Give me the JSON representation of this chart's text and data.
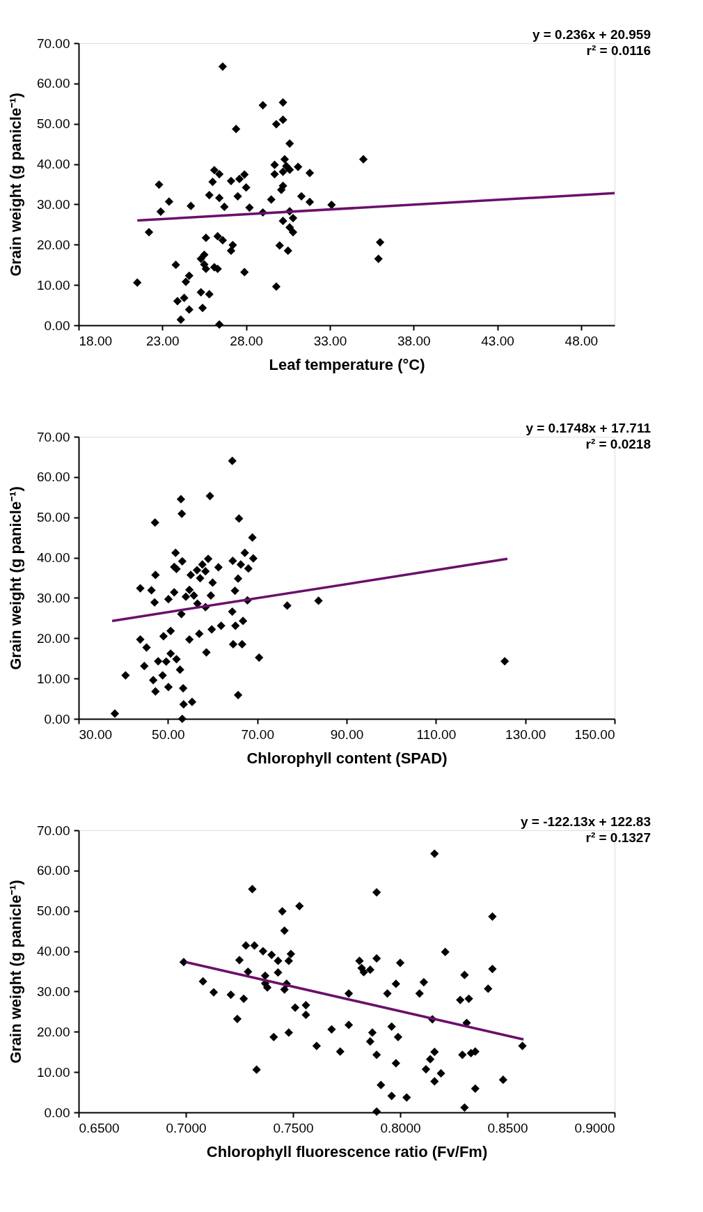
{
  "chart_data": [
    {
      "type": "scatter",
      "xlabel": "Leaf temperature (°C)",
      "ylabel": "Grain weight (g panicle⁻¹)",
      "grid": false,
      "xlim": [
        18,
        50
      ],
      "xticks": [
        {
          "value": 18,
          "label": "18.00"
        },
        {
          "value": 23,
          "label": "23.00"
        },
        {
          "value": 28,
          "label": "28.00"
        },
        {
          "value": 33,
          "label": "33.00"
        },
        {
          "value": 38,
          "label": "38.00"
        },
        {
          "value": 43,
          "label": "43.00"
        },
        {
          "value": 48,
          "label": "48.00"
        }
      ],
      "ylim": [
        0,
        70
      ],
      "yticks": [
        {
          "value": 0,
          "label": "0.00"
        },
        {
          "value": 10,
          "label": "10.00"
        },
        {
          "value": 20,
          "label": "20.00"
        },
        {
          "value": 30,
          "label": "30.00"
        },
        {
          "value": 40,
          "label": "40.00"
        },
        {
          "value": 50,
          "label": "50.00"
        },
        {
          "value": 60,
          "label": "60.00"
        },
        {
          "value": 70,
          "label": "70.00"
        }
      ],
      "annotations": [
        "y = 0.236x + 20.959",
        "r² = 0.0116"
      ],
      "series": [
        {
          "type": "scatter",
          "color": "#000000",
          "marker": "diamond",
          "x": [
            26.6,
            29.0,
            30.2,
            30.2,
            29.8,
            27.4,
            30.6,
            35.0,
            22.8,
            23.4,
            22.9,
            24.7,
            22.2,
            21.5,
            26.1,
            26.4,
            26.0,
            25.8,
            26.4,
            26.7,
            27.1,
            27.6,
            27.9,
            28.0,
            27.5,
            28.2,
            29.0,
            29.5,
            29.7,
            29.7,
            30.3,
            30.4,
            30.2,
            30.6,
            31.1,
            31.8,
            30.2,
            30.1,
            31.3,
            31.8,
            33.1,
            30.6,
            30.8,
            30.2,
            30.6,
            30.8,
            30.0,
            30.5,
            29.8,
            36.0,
            35.9,
            25.6,
            26.3,
            26.6,
            27.2,
            27.1,
            27.9,
            25.5,
            25.3,
            25.5,
            25.6,
            26.1,
            26.3,
            23.8,
            24.6,
            24.4,
            25.3,
            25.8,
            23.9,
            24.3,
            24.6,
            25.4,
            24.1,
            26.4
          ],
          "values": [
            64.2,
            54.6,
            55.3,
            51.0,
            49.9,
            48.7,
            45.1,
            41.2,
            34.9,
            30.7,
            28.2,
            29.6,
            23.1,
            10.6,
            38.5,
            37.5,
            35.6,
            32.3,
            31.6,
            29.4,
            35.8,
            36.3,
            37.4,
            34.2,
            32.0,
            29.2,
            28.0,
            31.2,
            39.8,
            37.5,
            41.2,
            39.5,
            38.1,
            38.6,
            39.3,
            37.8,
            34.6,
            33.6,
            32.0,
            30.6,
            29.9,
            28.3,
            26.6,
            25.9,
            24.3,
            23.1,
            19.8,
            18.5,
            9.6,
            20.6,
            16.5,
            21.7,
            22.1,
            21.1,
            19.9,
            18.5,
            13.2,
            17.5,
            16.5,
            15.1,
            14.0,
            14.4,
            14.0,
            15.0,
            12.3,
            10.8,
            8.2,
            7.7,
            6.0,
            6.8,
            3.9,
            4.3,
            1.4,
            0.2
          ]
        },
        {
          "type": "line",
          "color": "#6b0f6b",
          "line_style": "solid",
          "x": [
            21.5,
            50
          ],
          "values": [
            26.0,
            32.8
          ]
        }
      ]
    },
    {
      "type": "scatter",
      "xlabel": "Chlorophyll content (SPAD)",
      "ylabel": "Grain weight (g panicle⁻¹)",
      "grid": false,
      "xlim": [
        30,
        150
      ],
      "xticks": [
        {
          "value": 30,
          "label": "30.00"
        },
        {
          "value": 50,
          "label": "50.00"
        },
        {
          "value": 70,
          "label": "70.00"
        },
        {
          "value": 90,
          "label": "90.00"
        },
        {
          "value": 110,
          "label": "110.00"
        },
        {
          "value": 130,
          "label": "130.00"
        },
        {
          "value": 150,
          "label": "150.00"
        }
      ],
      "ylim": [
        0,
        70
      ],
      "yticks": [
        {
          "value": 0,
          "label": "0.00"
        },
        {
          "value": 10,
          "label": "10.00"
        },
        {
          "value": 20,
          "label": "20.00"
        },
        {
          "value": 30,
          "label": "30.00"
        },
        {
          "value": 40,
          "label": "40.00"
        },
        {
          "value": 50,
          "label": "50.00"
        },
        {
          "value": 60,
          "label": "60.00"
        },
        {
          "value": 70,
          "label": "70.00"
        }
      ],
      "annotations": [
        "y = 0.1748x + 17.711",
        "r² = 0.0218"
      ],
      "series": [
        {
          "type": "scatter",
          "color": "#000000",
          "marker": "diamond",
          "x": [
            38.1,
            40.5,
            43.8,
            46.3,
            47.0,
            47.2,
            47.1,
            43.8,
            45.2,
            44.7,
            46.7,
            47.2,
            47.8,
            48.8,
            49.0,
            50.6,
            50.1,
            49.6,
            50.6,
            51.9,
            52.7,
            53.4,
            53.5,
            55.4,
            53.2,
            51.4,
            50.1,
            51.7,
            51.4,
            53.2,
            51.9,
            52.9,
            53.1,
            54.0,
            54.8,
            55.8,
            53.0,
            54.8,
            57.0,
            56.6,
            58.4,
            59.8,
            61.9,
            58.6,
            55.1,
            56.5,
            57.7,
            59.0,
            58.4,
            57.2,
            60.0,
            59.6,
            61.3,
            59.4,
            64.4,
            64.5,
            66.3,
            68.0,
            67.2,
            69.1,
            68.9,
            65.9,
            65.7,
            65.0,
            67.8,
            64.4,
            65.1,
            66.8,
            64.6,
            66.6,
            65.7,
            70.4,
            76.7,
            83.7,
            125.4
          ],
          "values": [
            1.3,
            10.8,
            32.4,
            31.9,
            28.9,
            35.7,
            48.7,
            19.7,
            17.7,
            13.1,
            9.6,
            6.8,
            14.3,
            10.8,
            20.5,
            21.8,
            7.9,
            14.2,
            16.2,
            14.8,
            12.2,
            7.6,
            3.6,
            4.2,
            0.0,
            31.4,
            29.7,
            41.2,
            37.7,
            39.1,
            37.2,
            54.5,
            50.9,
            30.3,
            32.0,
            30.6,
            26.0,
            19.7,
            21.1,
            28.6,
            27.7,
            22.2,
            23.1,
            16.5,
            35.7,
            36.9,
            38.3,
            39.7,
            36.6,
            34.9,
            33.8,
            30.6,
            37.6,
            55.3,
            64.0,
            39.2,
            38.3,
            37.3,
            41.2,
            39.8,
            45.0,
            49.7,
            34.8,
            31.8,
            29.4,
            26.6,
            23.1,
            24.3,
            18.5,
            18.5,
            5.9,
            15.2,
            28.1,
            29.3,
            14.3
          ]
        },
        {
          "type": "line",
          "color": "#6b0f6b",
          "line_style": "solid",
          "x": [
            37.5,
            126
          ],
          "values": [
            24.3,
            39.7
          ]
        }
      ]
    },
    {
      "type": "scatter",
      "xlabel": "Chlorophyll fluorescence ratio (Fv/Fm)",
      "ylabel": "Grain weight (g panicle⁻¹)",
      "grid": false,
      "xlim": [
        0.65,
        0.9
      ],
      "xticks": [
        {
          "value": 0.65,
          "label": "0.6500"
        },
        {
          "value": 0.7,
          "label": "0.7000"
        },
        {
          "value": 0.75,
          "label": "0.7500"
        },
        {
          "value": 0.8,
          "label": "0.8000"
        },
        {
          "value": 0.85,
          "label": "0.8500"
        },
        {
          "value": 0.9,
          "label": "0.9000"
        }
      ],
      "ylim": [
        0,
        70
      ],
      "yticks": [
        {
          "value": 0,
          "label": "0.00"
        },
        {
          "value": 10,
          "label": "10.00"
        },
        {
          "value": 20,
          "label": "20.00"
        },
        {
          "value": 30,
          "label": "30.00"
        },
        {
          "value": 40,
          "label": "40.00"
        },
        {
          "value": 50,
          "label": "50.00"
        },
        {
          "value": 60,
          "label": "60.00"
        },
        {
          "value": 70,
          "label": "70.00"
        }
      ],
      "annotations": [
        "y = -122.13x + 122.83",
        "r² = 0.1327"
      ],
      "series": [
        {
          "type": "scatter",
          "color": "#000000",
          "marker": "diamond",
          "x": [
            0.699,
            0.708,
            0.713,
            0.721,
            0.727,
            0.724,
            0.725,
            0.728,
            0.732,
            0.736,
            0.74,
            0.743,
            0.749,
            0.748,
            0.745,
            0.746,
            0.753,
            0.731,
            0.729,
            0.737,
            0.743,
            0.737,
            0.738,
            0.746,
            0.747,
            0.751,
            0.756,
            0.756,
            0.741,
            0.748,
            0.733,
            0.761,
            0.768,
            0.772,
            0.776,
            0.776,
            0.781,
            0.782,
            0.783,
            0.786,
            0.789,
            0.789,
            0.787,
            0.786,
            0.789,
            0.791,
            0.796,
            0.789,
            0.803,
            0.796,
            0.799,
            0.798,
            0.794,
            0.798,
            0.8,
            0.809,
            0.811,
            0.816,
            0.821,
            0.815,
            0.816,
            0.814,
            0.812,
            0.816,
            0.819,
            0.828,
            0.832,
            0.83,
            0.831,
            0.829,
            0.833,
            0.835,
            0.83,
            0.835,
            0.841,
            0.843,
            0.843,
            0.848,
            0.857
          ],
          "values": [
            37.3,
            32.5,
            29.8,
            29.2,
            28.2,
            23.2,
            37.8,
            41.4,
            41.4,
            40.0,
            39.1,
            37.6,
            39.3,
            37.6,
            49.9,
            45.1,
            51.2,
            55.4,
            34.9,
            33.9,
            34.7,
            32.0,
            31.0,
            30.5,
            31.9,
            26.0,
            26.6,
            24.2,
            18.7,
            19.8,
            10.6,
            16.5,
            20.6,
            15.1,
            21.7,
            29.5,
            37.6,
            35.8,
            34.8,
            35.4,
            38.2,
            54.6,
            19.8,
            17.6,
            14.3,
            6.8,
            4.1,
            0.2,
            3.7,
            21.3,
            18.7,
            12.2,
            29.5,
            31.9,
            37.1,
            29.5,
            32.3,
            64.2,
            39.8,
            23.1,
            15.0,
            13.2,
            10.7,
            7.7,
            9.7,
            27.9,
            28.2,
            34.1,
            22.2,
            14.3,
            14.7,
            15.1,
            1.2,
            5.9,
            30.7,
            35.6,
            48.6,
            8.1,
            16.5
          ]
        },
        {
          "type": "line",
          "color": "#6b0f6b",
          "line_style": "solid",
          "x": [
            0.7,
            0.8575
          ],
          "values": [
            37.3,
            18.1
          ]
        }
      ]
    }
  ]
}
